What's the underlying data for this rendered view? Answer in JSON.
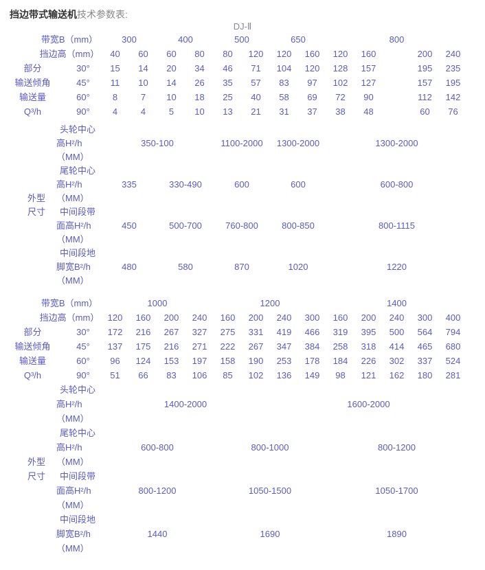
{
  "title": {
    "bold": "挡边带式输送机",
    "rest": "技术参数表:"
  },
  "model": "DJ-Ⅱ",
  "colors": {
    "table_text": "#5b5bc7",
    "title_bold": "#333333",
    "title_rest": "#888888",
    "model_text": "#8a8a99"
  },
  "shared_labels": {
    "band_width": "带宽B（mm）",
    "edge_height": "挡边高（mm）",
    "angle_rows": [
      {
        "label": "部分",
        "angle": "30°"
      },
      {
        "label": "输送倾角",
        "angle": "45°"
      },
      {
        "label": "输送量",
        "angle": "60°"
      },
      {
        "label": "Q³/h",
        "angle": "90°"
      }
    ],
    "outline_label_lines": [
      "外型",
      "尺寸"
    ],
    "band_labels": [
      [
        "头轮中心",
        "高H²/h",
        "（MM）"
      ],
      [
        "尾轮中心",
        "高H²/h",
        "（MM）"
      ],
      [
        "中间段带",
        "面高H²/h",
        "（MM）"
      ],
      [
        "中间段地",
        "脚宽B²/h",
        "（MM）"
      ]
    ]
  },
  "table1": {
    "outline_row_h": 20,
    "slots": [
      1,
      2,
      3,
      4,
      5,
      6,
      7,
      8,
      9,
      10,
      12,
      13
    ],
    "band_groups": [
      {
        "slot": 1,
        "span": 2,
        "label": "300"
      },
      {
        "slot": 3,
        "span": 2,
        "label": "400"
      },
      {
        "slot": 5,
        "span": 2,
        "label": "500"
      },
      {
        "slot": 7,
        "span": 2,
        "label": "650"
      },
      {
        "slot": 9,
        "span": 5,
        "label": "800"
      }
    ],
    "edge_values": [
      "40",
      "60",
      "60",
      "80",
      "80",
      "120",
      "120",
      "160",
      "120",
      "160",
      "200",
      "240"
    ],
    "angle_values": [
      [
        "15",
        "14",
        "20",
        "34",
        "46",
        "71",
        "104",
        "120",
        "128",
        "157",
        "195",
        "235"
      ],
      [
        "11",
        "10",
        "14",
        "26",
        "35",
        "57",
        "83",
        "97",
        "102",
        "127",
        "157",
        "195"
      ],
      [
        "8",
        "7",
        "10",
        "18",
        "25",
        "40",
        "58",
        "69",
        "72",
        "90",
        "112",
        "142"
      ],
      [
        "4",
        "4",
        "5",
        "10",
        "13",
        "21",
        "31",
        "37",
        "38",
        "48",
        "60",
        "76"
      ]
    ],
    "outline_values": [
      [
        {
          "slot": 1,
          "span": 4,
          "v": "350-100"
        },
        {
          "slot": 5,
          "span": 2,
          "v": "1100-2000"
        },
        {
          "slot": 7,
          "span": 2,
          "v": "1300-2000"
        },
        {
          "slot": 9,
          "span": 5,
          "v": "1300-2000"
        }
      ],
      [
        {
          "slot": 1,
          "span": 2,
          "v": "335"
        },
        {
          "slot": 3,
          "span": 2,
          "v": "330-490"
        },
        {
          "slot": 5,
          "span": 2,
          "v": "600"
        },
        {
          "slot": 7,
          "span": 2,
          "v": "600"
        },
        {
          "slot": 9,
          "span": 5,
          "v": "600-800"
        }
      ],
      [
        {
          "slot": 1,
          "span": 2,
          "v": "450"
        },
        {
          "slot": 3,
          "span": 2,
          "v": "500-700"
        },
        {
          "slot": 5,
          "span": 2,
          "v": "760-800"
        },
        {
          "slot": 7,
          "span": 2,
          "v": "800-850"
        },
        {
          "slot": 9,
          "span": 5,
          "v": "800-1115"
        }
      ],
      [
        {
          "slot": 1,
          "span": 2,
          "v": "480"
        },
        {
          "slot": 3,
          "span": 2,
          "v": "580"
        },
        {
          "slot": 5,
          "span": 2,
          "v": "870"
        },
        {
          "slot": 7,
          "span": 2,
          "v": "1020"
        },
        {
          "slot": 9,
          "span": 5,
          "v": "1220"
        }
      ]
    ]
  },
  "table2": {
    "outline_row_h": 21,
    "slots": [
      1,
      2,
      3,
      4,
      5,
      6,
      7,
      8,
      9,
      10,
      11,
      12,
      13
    ],
    "band_groups": [
      {
        "slot": 1,
        "span": 4,
        "label": "1000"
      },
      {
        "slot": 5,
        "span": 4,
        "label": "1200"
      },
      {
        "slot": 9,
        "span": 5,
        "label": "1400"
      }
    ],
    "edge_values": [
      "120",
      "160",
      "200",
      "240",
      "160",
      "200",
      "240",
      "300",
      "160",
      "200",
      "240",
      "300",
      "400"
    ],
    "angle_values": [
      [
        "172",
        "216",
        "267",
        "327",
        "275",
        "331",
        "419",
        "466",
        "319",
        "395",
        "500",
        "564",
        "794"
      ],
      [
        "137",
        "175",
        "216",
        "271",
        "222",
        "267",
        "347",
        "384",
        "258",
        "318",
        "414",
        "465",
        "680"
      ],
      [
        "96",
        "124",
        "153",
        "197",
        "158",
        "190",
        "253",
        "178",
        "184",
        "226",
        "302",
        "337",
        "524"
      ],
      [
        "51",
        "66",
        "83",
        "106",
        "85",
        "102",
        "136",
        "149",
        "98",
        "121",
        "162",
        "180",
        "281"
      ]
    ],
    "outline_values": [
      [
        {
          "slot": 1,
          "span": 6,
          "v": "1400-2000"
        },
        {
          "slot": 7,
          "span": 7,
          "v": "1600-2000"
        }
      ],
      [
        {
          "slot": 1,
          "span": 4,
          "v": "600-800"
        },
        {
          "slot": 5,
          "span": 4,
          "v": "800-1000"
        },
        {
          "slot": 9,
          "span": 5,
          "v": "800-1200"
        }
      ],
      [
        {
          "slot": 1,
          "span": 4,
          "v": "800-1200"
        },
        {
          "slot": 5,
          "span": 4,
          "v": "1050-1500"
        },
        {
          "slot": 9,
          "span": 5,
          "v": "1050-1700"
        }
      ],
      [
        {
          "slot": 1,
          "span": 4,
          "v": "1440"
        },
        {
          "slot": 5,
          "span": 4,
          "v": "1690"
        },
        {
          "slot": 9,
          "span": 5,
          "v": "1890"
        }
      ]
    ]
  }
}
